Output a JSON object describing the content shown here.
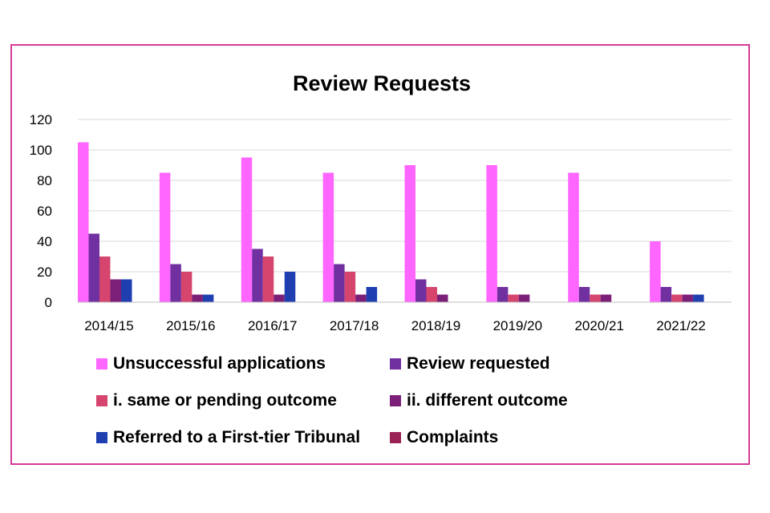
{
  "chart_data": {
    "type": "bar",
    "title": "Review Requests",
    "categories": [
      "2014/15",
      "2015/16",
      "2016/17",
      "2017/18",
      "2018/19",
      "2019/20",
      "2020/21",
      "2021/22"
    ],
    "ylim": [
      0,
      120
    ],
    "yticks": [
      0,
      20,
      40,
      60,
      80,
      100,
      120
    ],
    "grid": true,
    "legend_position": "bottom",
    "series": [
      {
        "name": "Unsuccessful applications",
        "color": "#ff66ff",
        "values": [
          105,
          85,
          95,
          85,
          90,
          90,
          85,
          40
        ]
      },
      {
        "name": "Review requested",
        "color": "#7030a0",
        "values": [
          45,
          25,
          35,
          25,
          15,
          10,
          10,
          10
        ]
      },
      {
        "name": "i. same or pending outcome",
        "color": "#d6456e",
        "values": [
          30,
          20,
          30,
          20,
          10,
          5,
          5,
          5
        ]
      },
      {
        "name": "ii. different outcome",
        "color": "#7b1f78",
        "values": [
          15,
          5,
          5,
          5,
          5,
          5,
          5,
          5
        ]
      },
      {
        "name": "Referred to a First-tier Tribunal",
        "color": "#1f3fb0",
        "values": [
          15,
          5,
          20,
          10,
          0,
          0,
          0,
          5
        ]
      },
      {
        "name": "Complaints",
        "color": "#9b2255",
        "values": [
          0,
          0,
          0,
          0,
          0,
          0,
          0,
          0
        ]
      }
    ]
  }
}
